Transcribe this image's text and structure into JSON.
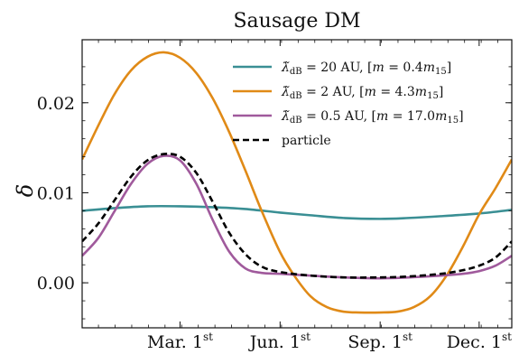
{
  "chart_data": {
    "type": "line",
    "title": "Sausage DM",
    "ylabel": "δ",
    "xlabel": "",
    "xlim": [
      -30,
      365
    ],
    "ylim": [
      -0.005,
      0.027
    ],
    "grid": false,
    "legend_position": "top-right",
    "x_ticks": [
      {
        "x": 60,
        "label_main": "Mar. 1",
        "label_sup": "st"
      },
      {
        "x": 152,
        "label_main": "Jun. 1",
        "label_sup": "st"
      },
      {
        "x": 244,
        "label_main": "Sep. 1",
        "label_sup": "st"
      },
      {
        "x": 335,
        "label_main": "Dec. 1",
        "label_sup": "st"
      }
    ],
    "y_ticks": [
      {
        "y": 0.0,
        "label": "0.00"
      },
      {
        "y": 0.01,
        "label": "0.01"
      },
      {
        "y": 0.02,
        "label": "0.02"
      }
    ],
    "series": [
      {
        "name": "λ̃dB = 20 AU, [m = 0.4m15]",
        "label_parts": {
          "lambda": "λ̃",
          "sub": "dB",
          "value": " = 20 AU,  [",
          "m": "m",
          "mid": " = 0.4",
          "m2": "m",
          "sub2": "15",
          "end": "]"
        },
        "color": "#3a8f94",
        "dash": "solid",
        "x": [
          -30,
          0,
          30,
          60,
          90,
          120,
          152,
          180,
          210,
          244,
          270,
          300,
          335,
          365
        ],
        "y": [
          0.008,
          0.0083,
          0.0085,
          0.0085,
          0.0084,
          0.0082,
          0.0078,
          0.0075,
          0.0072,
          0.0071,
          0.0072,
          0.0074,
          0.0077,
          0.0081
        ]
      },
      {
        "name": "λ̃dB = 2 AU, [m = 4.3m15]",
        "label_parts": {
          "lambda": "λ̃",
          "sub": "dB",
          "value": " = 2 AU,  [",
          "m": "m",
          "mid": " = 4.3",
          "m2": "m",
          "sub2": "15",
          "end": "]"
        },
        "color": "#e08a17",
        "dash": "solid",
        "x": [
          -30,
          -15,
          0,
          15,
          30,
          45,
          60,
          75,
          90,
          105,
          120,
          135,
          152,
          165,
          180,
          195,
          210,
          225,
          244,
          260,
          275,
          290,
          305,
          320,
          335,
          350,
          365
        ],
        "y": [
          0.0137,
          0.0175,
          0.021,
          0.0236,
          0.0251,
          0.0256,
          0.025,
          0.0233,
          0.0205,
          0.0168,
          0.0125,
          0.008,
          0.0034,
          0.0008,
          -0.0015,
          -0.0027,
          -0.0032,
          -0.0033,
          -0.0033,
          -0.0032,
          -0.0027,
          -0.0015,
          0.0008,
          0.004,
          0.0076,
          0.0105,
          0.0137
        ]
      },
      {
        "name": "λ̃dB = 0.5 AU, [m = 17.0m15]",
        "label_parts": {
          "lambda": "λ̃",
          "sub": "dB",
          "value": " = 0.5 AU,  [",
          "m": "m",
          "mid": " = 17.0",
          "m2": "m",
          "sub2": "15",
          "end": "]"
        },
        "color": "#a05a9c",
        "dash": "solid",
        "x": [
          -30,
          -15,
          0,
          15,
          30,
          45,
          60,
          75,
          90,
          105,
          120,
          135,
          152,
          180,
          210,
          244,
          270,
          300,
          320,
          335,
          350,
          365
        ],
        "y": [
          0.003,
          0.005,
          0.008,
          0.011,
          0.0132,
          0.0141,
          0.0136,
          0.011,
          0.007,
          0.0035,
          0.0016,
          0.0011,
          0.001,
          0.0008,
          0.0006,
          0.0005,
          0.0006,
          0.0008,
          0.001,
          0.0013,
          0.0019,
          0.003
        ]
      },
      {
        "name": "particle",
        "label_parts": {
          "plain": "particle"
        },
        "color": "#000000",
        "dash": "dashed",
        "x": [
          -30,
          -15,
          0,
          15,
          30,
          45,
          60,
          75,
          90,
          105,
          120,
          135,
          152,
          180,
          210,
          244,
          270,
          300,
          320,
          335,
          350,
          365
        ],
        "y": [
          0.0046,
          0.0066,
          0.0092,
          0.0118,
          0.0136,
          0.0143,
          0.014,
          0.0122,
          0.009,
          0.0056,
          0.0032,
          0.0018,
          0.0012,
          0.0008,
          0.0006,
          0.0006,
          0.0007,
          0.001,
          0.0014,
          0.0019,
          0.0028,
          0.0046
        ]
      }
    ]
  }
}
